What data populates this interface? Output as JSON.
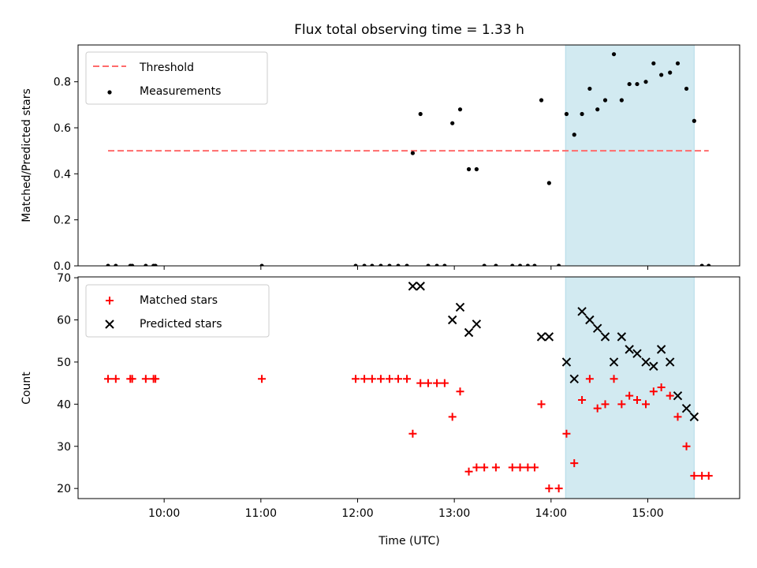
{
  "title": "Flux total observing time = 1.33 h",
  "chart_data": [
    {
      "type": "scatter",
      "panel": "top",
      "ylabel": "Matched/Predicted stars",
      "ylim": [
        0,
        0.96
      ],
      "yticks": [
        0.0,
        0.2,
        0.4,
        0.6,
        0.8
      ],
      "ytick_labels": [
        "0.0",
        "0.2",
        "0.4",
        "0.6",
        "0.8"
      ],
      "legend": {
        "placement": "upper-left",
        "entries": [
          "Threshold",
          "Measurements"
        ]
      },
      "threshold": {
        "name": "Threshold",
        "value": 0.5,
        "x_start": 9.42,
        "x_end": 15.63,
        "color": "#ff6b6b"
      },
      "highlight": {
        "x_start": 14.15,
        "x_end": 15.48,
        "color": "#add8e6"
      },
      "series": [
        {
          "name": "Measurements",
          "color": "#000000",
          "points": [
            [
              9.42,
              0
            ],
            [
              9.5,
              0
            ],
            [
              9.65,
              0
            ],
            [
              9.67,
              0
            ],
            [
              9.81,
              0
            ],
            [
              9.89,
              0
            ],
            [
              9.91,
              0
            ],
            [
              11.01,
              0
            ],
            [
              11.98,
              0
            ],
            [
              12.07,
              0
            ],
            [
              12.15,
              0
            ],
            [
              12.24,
              0
            ],
            [
              12.33,
              0
            ],
            [
              12.42,
              0
            ],
            [
              12.51,
              0
            ],
            [
              12.57,
              0.49
            ],
            [
              12.65,
              0.66
            ],
            [
              12.73,
              0
            ],
            [
              12.82,
              0
            ],
            [
              12.9,
              0
            ],
            [
              12.98,
              0.62
            ],
            [
              13.06,
              0.68
            ],
            [
              13.15,
              0.42
            ],
            [
              13.23,
              0.42
            ],
            [
              13.31,
              0
            ],
            [
              13.43,
              0
            ],
            [
              13.6,
              0
            ],
            [
              13.68,
              0
            ],
            [
              13.76,
              0
            ],
            [
              13.83,
              0
            ],
            [
              13.9,
              0.72
            ],
            [
              13.98,
              0.36
            ],
            [
              14.08,
              0
            ],
            [
              14.16,
              0.66
            ],
            [
              14.24,
              0.57
            ],
            [
              14.32,
              0.66
            ],
            [
              14.4,
              0.77
            ],
            [
              14.48,
              0.68
            ],
            [
              14.56,
              0.72
            ],
            [
              14.65,
              0.92
            ],
            [
              14.73,
              0.72
            ],
            [
              14.81,
              0.79
            ],
            [
              14.89,
              0.79
            ],
            [
              14.98,
              0.8
            ],
            [
              15.06,
              0.88
            ],
            [
              15.14,
              0.83
            ],
            [
              15.23,
              0.84
            ],
            [
              15.31,
              0.88
            ],
            [
              15.4,
              0.77
            ],
            [
              15.48,
              0.63
            ],
            [
              15.56,
              0
            ],
            [
              15.63,
              0
            ]
          ]
        }
      ]
    },
    {
      "type": "scatter",
      "panel": "bottom",
      "xlabel": "Time (UTC)",
      "ylabel": "Count",
      "ylim": [
        17.6,
        70.2
      ],
      "xlim": [
        9.11,
        15.95
      ],
      "yticks": [
        20,
        30,
        40,
        50,
        60,
        70
      ],
      "ytick_labels": [
        "20",
        "30",
        "40",
        "50",
        "60",
        "70"
      ],
      "xticks": [
        10,
        11,
        12,
        13,
        14,
        15
      ],
      "xtick_labels": [
        "10:00",
        "11:00",
        "12:00",
        "13:00",
        "14:00",
        "15:00"
      ],
      "legend": {
        "placement": "upper-left",
        "entries": [
          "Matched stars",
          "Predicted stars"
        ]
      },
      "highlight": {
        "x_start": 14.15,
        "x_end": 15.48,
        "color": "#add8e6"
      },
      "series": [
        {
          "name": "Matched stars",
          "marker": "plus",
          "color": "#ff0000",
          "points": [
            [
              9.42,
              46
            ],
            [
              9.5,
              46
            ],
            [
              9.65,
              46
            ],
            [
              9.67,
              46
            ],
            [
              9.81,
              46
            ],
            [
              9.89,
              46
            ],
            [
              9.91,
              46
            ],
            [
              11.01,
              46
            ],
            [
              11.98,
              46
            ],
            [
              12.07,
              46
            ],
            [
              12.15,
              46
            ],
            [
              12.24,
              46
            ],
            [
              12.33,
              46
            ],
            [
              12.42,
              46
            ],
            [
              12.51,
              46
            ],
            [
              12.57,
              33
            ],
            [
              12.65,
              45
            ],
            [
              12.73,
              45
            ],
            [
              12.82,
              45
            ],
            [
              12.9,
              45
            ],
            [
              12.98,
              37
            ],
            [
              13.06,
              43
            ],
            [
              13.15,
              24
            ],
            [
              13.23,
              25
            ],
            [
              13.31,
              25
            ],
            [
              13.43,
              25
            ],
            [
              13.6,
              25
            ],
            [
              13.68,
              25
            ],
            [
              13.76,
              25
            ],
            [
              13.83,
              25
            ],
            [
              13.9,
              40
            ],
            [
              13.98,
              20
            ],
            [
              14.08,
              20
            ],
            [
              14.16,
              33
            ],
            [
              14.24,
              26
            ],
            [
              14.32,
              41
            ],
            [
              14.4,
              46
            ],
            [
              14.48,
              39
            ],
            [
              14.56,
              40
            ],
            [
              14.65,
              46
            ],
            [
              14.73,
              40
            ],
            [
              14.81,
              42
            ],
            [
              14.89,
              41
            ],
            [
              14.98,
              40
            ],
            [
              15.06,
              43
            ],
            [
              15.14,
              44
            ],
            [
              15.23,
              42
            ],
            [
              15.31,
              37
            ],
            [
              15.4,
              30
            ],
            [
              15.48,
              23
            ],
            [
              15.56,
              23
            ],
            [
              15.63,
              23
            ]
          ]
        },
        {
          "name": "Predicted stars",
          "marker": "x",
          "color": "#000000",
          "points": [
            [
              12.57,
              68
            ],
            [
              12.65,
              68
            ],
            [
              12.98,
              60
            ],
            [
              13.06,
              63
            ],
            [
              13.15,
              57
            ],
            [
              13.23,
              59
            ],
            [
              13.9,
              56
            ],
            [
              13.98,
              56
            ],
            [
              14.16,
              50
            ],
            [
              14.24,
              46
            ],
            [
              14.32,
              62
            ],
            [
              14.4,
              60
            ],
            [
              14.48,
              58
            ],
            [
              14.56,
              56
            ],
            [
              14.65,
              50
            ],
            [
              14.73,
              56
            ],
            [
              14.81,
              53
            ],
            [
              14.89,
              52
            ],
            [
              14.98,
              50
            ],
            [
              15.06,
              49
            ],
            [
              15.14,
              53
            ],
            [
              15.23,
              50
            ],
            [
              15.31,
              42
            ],
            [
              15.4,
              39
            ],
            [
              15.48,
              37
            ]
          ]
        }
      ]
    }
  ]
}
